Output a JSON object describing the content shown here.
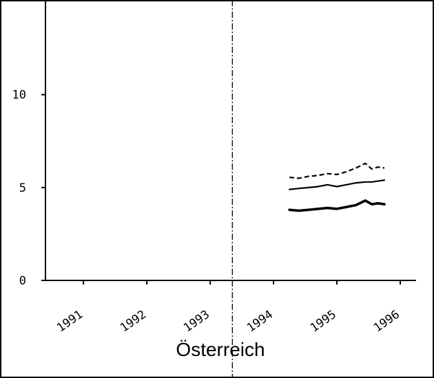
{
  "chart_data": {
    "type": "line",
    "title": "Österreich",
    "xlabel": "",
    "ylabel": "",
    "xlim": [
      1990.4,
      1996.25
    ],
    "ylim": [
      0,
      14.8
    ],
    "y_ticks": [
      0,
      5,
      10
    ],
    "y_tick_labels": [
      "0",
      "5",
      "10"
    ],
    "x_ticks": [
      1991,
      1992,
      1993,
      1994,
      1995,
      1996
    ],
    "x_tick_labels": [
      "1991",
      "1992",
      "1993",
      "1994",
      "1995",
      "1996"
    ],
    "grid": false,
    "legend": "none",
    "reference_line_x": 1993.35,
    "series": [
      {
        "style": "dashed",
        "color": "#000000",
        "x": [
          1994.25,
          1994.4,
          1994.55,
          1994.7,
          1994.85,
          1995.0,
          1995.15,
          1995.3,
          1995.45,
          1995.55,
          1995.65,
          1995.75
        ],
        "y": [
          5.55,
          5.5,
          5.6,
          5.65,
          5.75,
          5.7,
          5.85,
          6.05,
          6.3,
          6.0,
          6.1,
          6.05
        ]
      },
      {
        "style": "solid",
        "color": "#000000",
        "x": [
          1994.25,
          1994.4,
          1994.55,
          1994.7,
          1994.85,
          1995.0,
          1995.15,
          1995.3,
          1995.45,
          1995.55,
          1995.65,
          1995.75
        ],
        "y": [
          4.9,
          4.95,
          5.0,
          5.05,
          5.15,
          5.05,
          5.15,
          5.25,
          5.3,
          5.3,
          5.35,
          5.4
        ]
      },
      {
        "style": "solid-bold",
        "color": "#000000",
        "x": [
          1994.25,
          1994.4,
          1994.55,
          1994.7,
          1994.85,
          1995.0,
          1995.15,
          1995.3,
          1995.45,
          1995.55,
          1995.65,
          1995.75
        ],
        "y": [
          3.8,
          3.75,
          3.8,
          3.85,
          3.9,
          3.85,
          3.95,
          4.05,
          4.3,
          4.1,
          4.15,
          4.1
        ]
      }
    ]
  }
}
